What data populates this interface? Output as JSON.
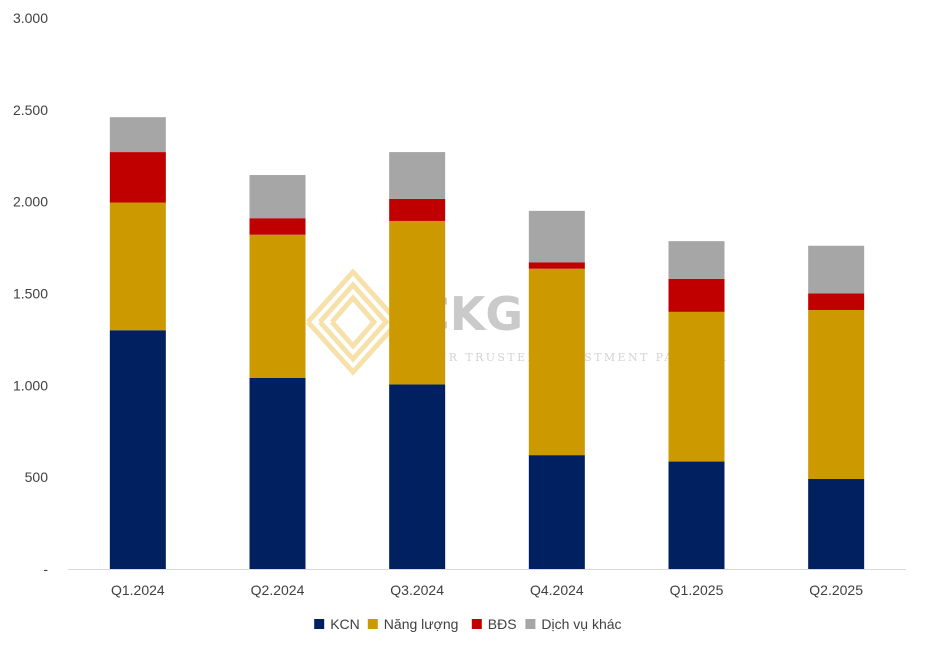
{
  "chart_data": {
    "type": "bar",
    "stacked": true,
    "categories": [
      "Q1.2024",
      "Q2.2024",
      "Q3.2024",
      "Q4.2024",
      "Q1.2025",
      "Q2.2025"
    ],
    "series": [
      {
        "name": "KCN",
        "color": "#002060",
        "values": [
          1300,
          1040,
          1005,
          620,
          585,
          490
        ]
      },
      {
        "name": "Năng lượng",
        "color": "#CC9900",
        "values": [
          695,
          780,
          890,
          1015,
          815,
          920
        ]
      },
      {
        "name": "BĐS",
        "color": "#C00000",
        "values": [
          275,
          90,
          120,
          35,
          180,
          90
        ]
      },
      {
        "name": "Dịch vụ khác",
        "color": "#A6A6A6",
        "values": [
          190,
          235,
          255,
          280,
          205,
          260
        ]
      }
    ],
    "ylim": [
      0,
      3000
    ],
    "yticks": [
      0,
      500,
      1000,
      1500,
      2000,
      2500,
      3000
    ],
    "ytick_labels": [
      "-",
      "500",
      "1.000",
      "1.500",
      "2.000",
      "2.500",
      "3.000"
    ],
    "grid": false,
    "legend": "bottom"
  },
  "watermark": {
    "brand": "CKG",
    "tagline": "YOUR TRUSTED INVESTMENT PARTNER",
    "logo_icon": "ckg-logo-icon"
  }
}
